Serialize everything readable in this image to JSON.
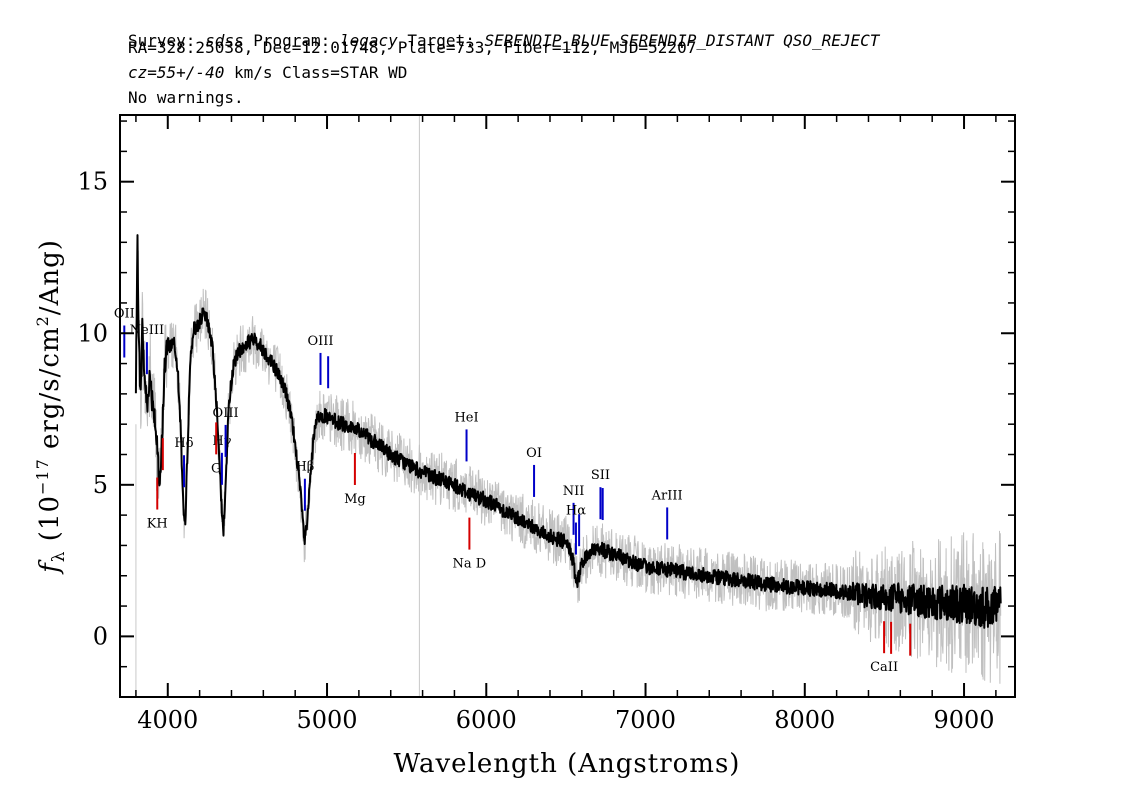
{
  "header": {
    "survey_label": "Survey:",
    "survey": "sdss",
    "program_label": "Program:",
    "program": "legacy",
    "target_label": "Target:",
    "target": "SERENDIP_BLUE SERENDIP_DISTANT QSO_REJECT",
    "line2": "RA=328.25038, Dec=12.01748, Plate=733, Fiber=112, MJD=52207",
    "cz": "cz=55+/-40",
    "line3_rest": " km/s Class=STAR WD",
    "line4": "No warnings."
  },
  "chart_data": {
    "type": "line",
    "xlabel": "Wavelength (Angstroms)",
    "ylabel": "f_λ (10^-17 erg/s/cm^2/Ang)",
    "xlim": [
      3700,
      9320
    ],
    "ylim": [
      -2,
      17.2
    ],
    "x_ticks": [
      4000,
      5000,
      6000,
      7000,
      8000,
      9000
    ],
    "y_ticks": [
      0,
      5,
      10,
      15
    ],
    "grid": false,
    "series": [
      {
        "role": "flux",
        "color": "#000000",
        "x": [
          3800,
          3810,
          3820,
          3830,
          3840,
          3850,
          3860,
          3870,
          3880,
          3890,
          3900,
          3910,
          3920,
          3930,
          3940,
          3950,
          3960,
          3970,
          3980,
          3990,
          4000,
          4020,
          4040,
          4060,
          4080,
          4100,
          4110,
          4120,
          4140,
          4160,
          4180,
          4200,
          4220,
          4240,
          4260,
          4280,
          4300,
          4320,
          4340,
          4350,
          4360,
          4380,
          4400,
          4420,
          4440,
          4460,
          4480,
          4500,
          4540,
          4580,
          4620,
          4660,
          4700,
          4740,
          4780,
          4800,
          4820,
          4840,
          4860,
          4880,
          4900,
          4920,
          4940,
          4960,
          4980,
          5000,
          5050,
          5100,
          5150,
          5200,
          5250,
          5300,
          5400,
          5500,
          5600,
          5700,
          5800,
          5900,
          6000,
          6100,
          6200,
          6300,
          6400,
          6450,
          6500,
          6530,
          6550,
          6563,
          6580,
          6600,
          6650,
          6700,
          6800,
          6900,
          7000,
          7200,
          7400,
          7600,
          7800,
          8000,
          8200,
          8400,
          8600,
          8800,
          9000,
          9100,
          9200
        ],
        "y": [
          8.2,
          12.8,
          9.5,
          7.8,
          10.2,
          9.0,
          8.1,
          7.6,
          8.3,
          8.6,
          7.9,
          7.7,
          7.2,
          6.4,
          5.5,
          4.8,
          5.9,
          7.5,
          8.8,
          9.4,
          9.6,
          9.6,
          9.8,
          9.0,
          7.0,
          4.0,
          3.6,
          5.5,
          9.0,
          10.1,
          10.2,
          10.4,
          10.6,
          10.5,
          10.2,
          9.5,
          8.2,
          6.5,
          4.0,
          3.5,
          4.5,
          7.3,
          8.5,
          9.1,
          9.3,
          9.5,
          9.5,
          9.7,
          9.8,
          9.6,
          9.3,
          9.0,
          8.6,
          8.1,
          7.1,
          6.3,
          5.5,
          4.3,
          3.1,
          4.0,
          5.6,
          6.7,
          7.2,
          7.3,
          7.3,
          7.2,
          7.1,
          7.0,
          6.9,
          6.8,
          6.6,
          6.4,
          6.0,
          5.7,
          5.4,
          5.2,
          5.0,
          4.7,
          4.5,
          4.2,
          3.9,
          3.6,
          3.3,
          3.2,
          3.1,
          2.8,
          2.3,
          1.7,
          1.9,
          2.4,
          2.8,
          2.9,
          2.7,
          2.5,
          2.3,
          2.15,
          2.0,
          1.85,
          1.7,
          1.6,
          1.5,
          1.35,
          1.25,
          1.15,
          1.05,
          1.0,
          0.9
        ]
      }
    ],
    "noise_line_x": 5580,
    "emission_lines": [
      {
        "label": "OII",
        "x": 3727
      },
      {
        "label": "NeIII",
        "x": 3869
      },
      {
        "label": "Hδ",
        "x": 4102
      },
      {
        "label": "Hγ",
        "x": 4340
      },
      {
        "label": "OIII",
        "x": 4363
      },
      {
        "label": "Hβ",
        "x": 4861
      },
      {
        "label": "OIII",
        "x": 4959
      },
      {
        "label": "OIII",
        "x": 5007
      },
      {
        "label": "HeI",
        "x": 5876
      },
      {
        "label": "OI",
        "x": 6300
      },
      {
        "label": "NII",
        "x": 6548
      },
      {
        "label": "Hα",
        "x": 6563
      },
      {
        "label": "NII",
        "x": 6583
      },
      {
        "label": "SII",
        "x": 6717
      },
      {
        "label": "SII",
        "x": 6731
      },
      {
        "label": "ArIII",
        "x": 7136
      }
    ],
    "absorption_lines": [
      {
        "label": "KH",
        "x": 3934
      },
      {
        "label": "KH",
        "x": 3969
      },
      {
        "label": "G",
        "x": 4304
      },
      {
        "label": "Mg",
        "x": 5175
      },
      {
        "label": "Na D",
        "x": 5894
      },
      {
        "label": "CaII",
        "x": 8498
      },
      {
        "label": "CaII",
        "x": 8542
      },
      {
        "label": "CaII",
        "x": 8662
      }
    ],
    "colors": {
      "flux": "#000000",
      "error": "#c0c0c0",
      "emission": "#0000c8",
      "absorption": "#d40000"
    }
  }
}
